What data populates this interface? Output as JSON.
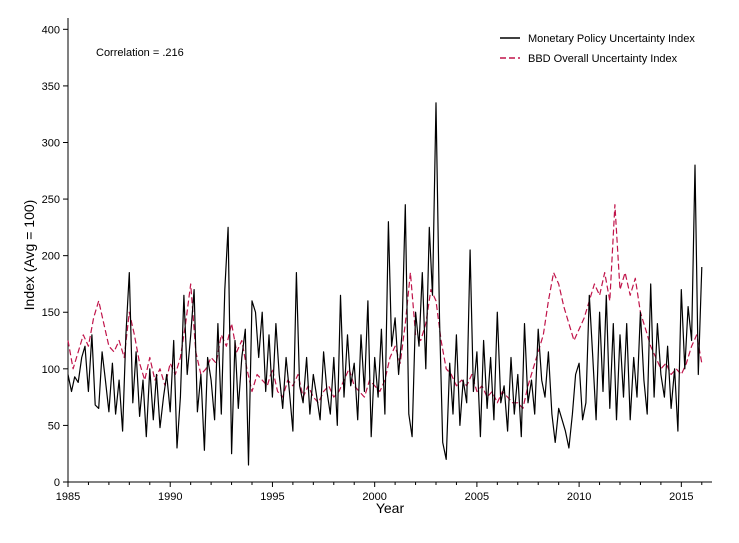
{
  "chart_data": {
    "type": "line",
    "xlabel": "Year",
    "ylabel": "Index (Avg = 100)",
    "annotation": "Correlation = .216",
    "xlim": [
      1985,
      2016.5
    ],
    "ylim": [
      0,
      410
    ],
    "x_ticks": [
      1985,
      1990,
      1995,
      2000,
      2005,
      2010,
      2015
    ],
    "y_ticks": [
      0,
      50,
      100,
      150,
      200,
      250,
      300,
      350,
      400
    ],
    "grid": false,
    "legend_position": "top-right",
    "series": [
      {
        "name": "Monetary Policy Uncertainty Index",
        "color": "#000000",
        "style": "solid",
        "points": [
          [
            1985.0,
            95
          ],
          [
            1985.17,
            80
          ],
          [
            1985.33,
            93
          ],
          [
            1985.5,
            88
          ],
          [
            1985.67,
            110
          ],
          [
            1985.83,
            120
          ],
          [
            1986.0,
            80
          ],
          [
            1986.17,
            130
          ],
          [
            1986.33,
            68
          ],
          [
            1986.5,
            65
          ],
          [
            1986.67,
            115
          ],
          [
            1986.83,
            90
          ],
          [
            1987.0,
            62
          ],
          [
            1987.17,
            105
          ],
          [
            1987.33,
            60
          ],
          [
            1987.5,
            90
          ],
          [
            1987.67,
            45
          ],
          [
            1987.83,
            130
          ],
          [
            1988.0,
            185
          ],
          [
            1988.17,
            70
          ],
          [
            1988.33,
            115
          ],
          [
            1988.5,
            58
          ],
          [
            1988.67,
            90
          ],
          [
            1988.83,
            40
          ],
          [
            1989.0,
            100
          ],
          [
            1989.17,
            55
          ],
          [
            1989.33,
            95
          ],
          [
            1989.5,
            48
          ],
          [
            1989.67,
            75
          ],
          [
            1989.83,
            95
          ],
          [
            1990.0,
            62
          ],
          [
            1990.17,
            125
          ],
          [
            1990.33,
            30
          ],
          [
            1990.5,
            75
          ],
          [
            1990.67,
            165
          ],
          [
            1990.83,
            95
          ],
          [
            1991.0,
            130
          ],
          [
            1991.17,
            170
          ],
          [
            1991.33,
            62
          ],
          [
            1991.5,
            95
          ],
          [
            1991.67,
            28
          ],
          [
            1991.83,
            110
          ],
          [
            1992.0,
            90
          ],
          [
            1992.17,
            55
          ],
          [
            1992.33,
            140
          ],
          [
            1992.5,
            60
          ],
          [
            1992.67,
            170
          ],
          [
            1992.83,
            225
          ],
          [
            1993.0,
            25
          ],
          [
            1993.17,
            125
          ],
          [
            1993.33,
            65
          ],
          [
            1993.5,
            110
          ],
          [
            1993.67,
            135
          ],
          [
            1993.83,
            15
          ],
          [
            1994.0,
            160
          ],
          [
            1994.17,
            150
          ],
          [
            1994.33,
            110
          ],
          [
            1994.5,
            150
          ],
          [
            1994.67,
            80
          ],
          [
            1994.83,
            130
          ],
          [
            1995.0,
            75
          ],
          [
            1995.17,
            140
          ],
          [
            1995.33,
            95
          ],
          [
            1995.5,
            65
          ],
          [
            1995.67,
            110
          ],
          [
            1995.83,
            80
          ],
          [
            1996.0,
            45
          ],
          [
            1996.17,
            185
          ],
          [
            1996.33,
            85
          ],
          [
            1996.5,
            70
          ],
          [
            1996.67,
            110
          ],
          [
            1996.83,
            60
          ],
          [
            1997.0,
            95
          ],
          [
            1997.17,
            75
          ],
          [
            1997.33,
            55
          ],
          [
            1997.5,
            115
          ],
          [
            1997.67,
            80
          ],
          [
            1997.83,
            60
          ],
          [
            1998.0,
            110
          ],
          [
            1998.17,
            50
          ],
          [
            1998.33,
            165
          ],
          [
            1998.5,
            75
          ],
          [
            1998.67,
            130
          ],
          [
            1998.83,
            85
          ],
          [
            1999.0,
            105
          ],
          [
            1999.17,
            55
          ],
          [
            1999.33,
            130
          ],
          [
            1999.5,
            80
          ],
          [
            1999.67,
            160
          ],
          [
            1999.83,
            40
          ],
          [
            2000.0,
            110
          ],
          [
            2000.17,
            75
          ],
          [
            2000.33,
            135
          ],
          [
            2000.5,
            60
          ],
          [
            2000.67,
            230
          ],
          [
            2000.83,
            120
          ],
          [
            2001.0,
            145
          ],
          [
            2001.17,
            95
          ],
          [
            2001.33,
            130
          ],
          [
            2001.5,
            245
          ],
          [
            2001.67,
            60
          ],
          [
            2001.83,
            40
          ],
          [
            2002.0,
            150
          ],
          [
            2002.17,
            120
          ],
          [
            2002.33,
            185
          ],
          [
            2002.5,
            100
          ],
          [
            2002.67,
            225
          ],
          [
            2002.83,
            165
          ],
          [
            2003.0,
            335
          ],
          [
            2003.17,
            145
          ],
          [
            2003.33,
            35
          ],
          [
            2003.5,
            20
          ],
          [
            2003.67,
            105
          ],
          [
            2003.83,
            60
          ],
          [
            2004.0,
            130
          ],
          [
            2004.17,
            50
          ],
          [
            2004.33,
            90
          ],
          [
            2004.5,
            70
          ],
          [
            2004.67,
            205
          ],
          [
            2004.83,
            80
          ],
          [
            2005.0,
            115
          ],
          [
            2005.17,
            40
          ],
          [
            2005.33,
            125
          ],
          [
            2005.5,
            65
          ],
          [
            2005.67,
            110
          ],
          [
            2005.83,
            55
          ],
          [
            2006.0,
            150
          ],
          [
            2006.17,
            70
          ],
          [
            2006.33,
            85
          ],
          [
            2006.5,
            45
          ],
          [
            2006.67,
            110
          ],
          [
            2006.83,
            60
          ],
          [
            2007.0,
            95
          ],
          [
            2007.17,
            40
          ],
          [
            2007.33,
            140
          ],
          [
            2007.5,
            70
          ],
          [
            2007.67,
            90
          ],
          [
            2007.83,
            60
          ],
          [
            2008.0,
            135
          ],
          [
            2008.17,
            90
          ],
          [
            2008.33,
            75
          ],
          [
            2008.5,
            115
          ],
          [
            2008.67,
            60
          ],
          [
            2008.83,
            35
          ],
          [
            2009.0,
            65
          ],
          [
            2009.17,
            55
          ],
          [
            2009.33,
            45
          ],
          [
            2009.5,
            30
          ],
          [
            2009.67,
            60
          ],
          [
            2009.83,
            95
          ],
          [
            2010.0,
            105
          ],
          [
            2010.17,
            55
          ],
          [
            2010.33,
            70
          ],
          [
            2010.5,
            165
          ],
          [
            2010.67,
            110
          ],
          [
            2010.83,
            55
          ],
          [
            2011.0,
            150
          ],
          [
            2011.17,
            80
          ],
          [
            2011.33,
            165
          ],
          [
            2011.5,
            65
          ],
          [
            2011.67,
            140
          ],
          [
            2011.83,
            55
          ],
          [
            2012.0,
            130
          ],
          [
            2012.17,
            75
          ],
          [
            2012.33,
            140
          ],
          [
            2012.5,
            55
          ],
          [
            2012.67,
            110
          ],
          [
            2012.83,
            75
          ],
          [
            2013.0,
            150
          ],
          [
            2013.17,
            90
          ],
          [
            2013.33,
            60
          ],
          [
            2013.5,
            175
          ],
          [
            2013.67,
            75
          ],
          [
            2013.83,
            140
          ],
          [
            2014.0,
            95
          ],
          [
            2014.17,
            75
          ],
          [
            2014.33,
            120
          ],
          [
            2014.5,
            65
          ],
          [
            2014.67,
            100
          ],
          [
            2014.83,
            45
          ],
          [
            2015.0,
            170
          ],
          [
            2015.17,
            100
          ],
          [
            2015.33,
            155
          ],
          [
            2015.5,
            125
          ],
          [
            2015.67,
            280
          ],
          [
            2015.83,
            95
          ],
          [
            2016.0,
            190
          ]
        ]
      },
      {
        "name": "BBD Overall Uncertainty Index",
        "color": "#c0144a",
        "style": "dashed",
        "points": [
          [
            1985.0,
            125
          ],
          [
            1985.25,
            100
          ],
          [
            1985.5,
            115
          ],
          [
            1985.75,
            130
          ],
          [
            1986.0,
            120
          ],
          [
            1986.25,
            145
          ],
          [
            1986.5,
            160
          ],
          [
            1986.75,
            140
          ],
          [
            1987.0,
            120
          ],
          [
            1987.25,
            115
          ],
          [
            1987.5,
            125
          ],
          [
            1987.75,
            110
          ],
          [
            1988.0,
            150
          ],
          [
            1988.25,
            130
          ],
          [
            1988.5,
            105
          ],
          [
            1988.75,
            90
          ],
          [
            1989.0,
            110
          ],
          [
            1989.25,
            90
          ],
          [
            1989.5,
            100
          ],
          [
            1989.75,
            85
          ],
          [
            1990.0,
            105
          ],
          [
            1990.25,
            95
          ],
          [
            1990.5,
            110
          ],
          [
            1990.75,
            140
          ],
          [
            1991.0,
            175
          ],
          [
            1991.25,
            115
          ],
          [
            1991.5,
            95
          ],
          [
            1991.75,
            100
          ],
          [
            1992.0,
            110
          ],
          [
            1992.25,
            105
          ],
          [
            1992.5,
            130
          ],
          [
            1992.75,
            120
          ],
          [
            1993.0,
            140
          ],
          [
            1993.25,
            115
          ],
          [
            1993.5,
            125
          ],
          [
            1993.75,
            100
          ],
          [
            1994.0,
            80
          ],
          [
            1994.25,
            95
          ],
          [
            1994.5,
            90
          ],
          [
            1994.75,
            85
          ],
          [
            1995.0,
            100
          ],
          [
            1995.25,
            80
          ],
          [
            1995.5,
            75
          ],
          [
            1995.75,
            90
          ],
          [
            1996.0,
            85
          ],
          [
            1996.25,
            95
          ],
          [
            1996.5,
            75
          ],
          [
            1996.75,
            85
          ],
          [
            1997.0,
            75
          ],
          [
            1997.25,
            70
          ],
          [
            1997.5,
            80
          ],
          [
            1997.75,
            85
          ],
          [
            1998.0,
            75
          ],
          [
            1998.25,
            80
          ],
          [
            1998.5,
            90
          ],
          [
            1998.75,
            100
          ],
          [
            1999.0,
            85
          ],
          [
            1999.25,
            80
          ],
          [
            1999.5,
            75
          ],
          [
            1999.75,
            90
          ],
          [
            2000.0,
            85
          ],
          [
            2000.25,
            80
          ],
          [
            2000.5,
            90
          ],
          [
            2000.75,
            110
          ],
          [
            2001.0,
            120
          ],
          [
            2001.25,
            105
          ],
          [
            2001.5,
            140
          ],
          [
            2001.75,
            185
          ],
          [
            2002.0,
            130
          ],
          [
            2002.25,
            125
          ],
          [
            2002.5,
            140
          ],
          [
            2002.75,
            170
          ],
          [
            2003.0,
            160
          ],
          [
            2003.25,
            125
          ],
          [
            2003.5,
            100
          ],
          [
            2003.75,
            95
          ],
          [
            2004.0,
            85
          ],
          [
            2004.25,
            90
          ],
          [
            2004.5,
            85
          ],
          [
            2004.75,
            95
          ],
          [
            2005.0,
            80
          ],
          [
            2005.25,
            85
          ],
          [
            2005.5,
            75
          ],
          [
            2005.75,
            80
          ],
          [
            2006.0,
            70
          ],
          [
            2006.25,
            80
          ],
          [
            2006.5,
            75
          ],
          [
            2006.75,
            70
          ],
          [
            2007.0,
            70
          ],
          [
            2007.25,
            65
          ],
          [
            2007.5,
            85
          ],
          [
            2007.75,
            100
          ],
          [
            2008.0,
            115
          ],
          [
            2008.25,
            130
          ],
          [
            2008.5,
            160
          ],
          [
            2008.75,
            185
          ],
          [
            2009.0,
            175
          ],
          [
            2009.25,
            155
          ],
          [
            2009.5,
            140
          ],
          [
            2009.75,
            125
          ],
          [
            2010.0,
            135
          ],
          [
            2010.25,
            145
          ],
          [
            2010.5,
            160
          ],
          [
            2010.75,
            175
          ],
          [
            2011.0,
            165
          ],
          [
            2011.25,
            185
          ],
          [
            2011.5,
            160
          ],
          [
            2011.75,
            245
          ],
          [
            2012.0,
            170
          ],
          [
            2012.25,
            185
          ],
          [
            2012.5,
            165
          ],
          [
            2012.75,
            180
          ],
          [
            2013.0,
            150
          ],
          [
            2013.25,
            135
          ],
          [
            2013.5,
            120
          ],
          [
            2013.75,
            110
          ],
          [
            2014.0,
            100
          ],
          [
            2014.25,
            105
          ],
          [
            2014.5,
            95
          ],
          [
            2014.75,
            100
          ],
          [
            2015.0,
            95
          ],
          [
            2015.25,
            105
          ],
          [
            2015.5,
            120
          ],
          [
            2015.75,
            130
          ],
          [
            2016.0,
            105
          ]
        ]
      }
    ]
  }
}
